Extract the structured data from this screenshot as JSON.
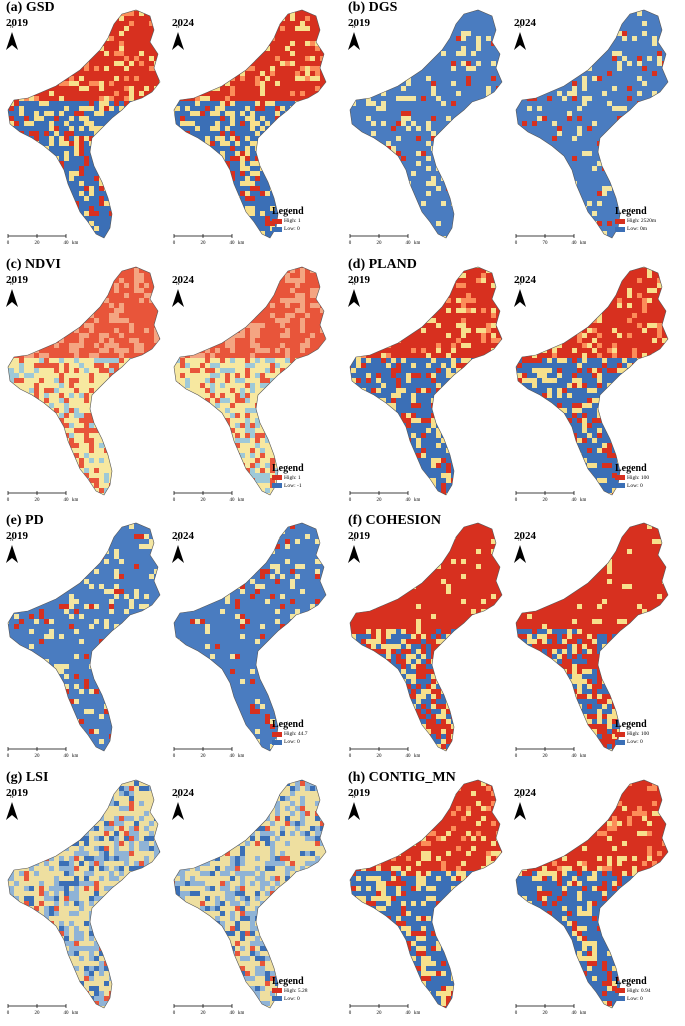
{
  "panels": [
    {
      "id": "a",
      "title": "(a) GSD",
      "legend": {
        "title": "Legend",
        "high": "High: 1",
        "low": "Low: 0"
      },
      "palette": "rb",
      "density": 0.55
    },
    {
      "id": "b",
      "title": "(b) DGS",
      "legend": {
        "title": "Legend",
        "high": "High: 2520m",
        "low": "Low: 0m"
      },
      "palette": "blue",
      "density": 0.1
    },
    {
      "id": "c",
      "title": "(c) NDVI",
      "legend": {
        "title": "Legend",
        "high": "High: 1",
        "low": "Low: -1"
      },
      "palette": "ndvi",
      "density": 0.6
    },
    {
      "id": "d",
      "title": "(d) PLAND",
      "legend": {
        "title": "Legend",
        "high": "High: 100",
        "low": "Low: 0"
      },
      "palette": "rb",
      "density": 0.55
    },
    {
      "id": "e",
      "title": "(e) PD",
      "legend": {
        "title": "Legend",
        "high": "High: 44.7",
        "low": "Low: 0"
      },
      "palette": "blue",
      "density": 0.2
    },
    {
      "id": "f",
      "title": "(f) COHESION",
      "legend": {
        "title": "Legend",
        "high": "High: 100",
        "low": "Low: 0"
      },
      "palette": "red",
      "density": 0.8
    },
    {
      "id": "g",
      "title": "(g) LSI",
      "legend": {
        "title": "Legend",
        "high": "High: 5.28",
        "low": "Low: 0"
      },
      "palette": "lsi",
      "density": 0.3
    },
    {
      "id": "h",
      "title": "(h) CONTIG_MN",
      "legend": {
        "title": "Legend",
        "high": "High: 0.94",
        "low": "Low: 0"
      },
      "palette": "rb",
      "density": 0.55
    }
  ],
  "years": [
    "2019",
    "2024"
  ],
  "north_label": "N",
  "scale": {
    "ticks_a": [
      "0",
      "20",
      "40"
    ],
    "ticks_b": [
      "0",
      "70",
      "40"
    ],
    "unit": "km"
  },
  "colors": {
    "high": "#d7301f",
    "mid": "#f7e08c",
    "low": "#3b6fb6"
  }
}
